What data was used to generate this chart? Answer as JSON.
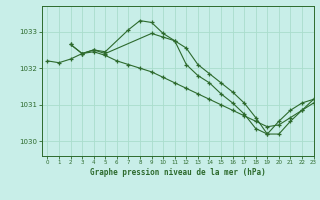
{
  "xlabel": "Graphe pression niveau de la mer (hPa)",
  "xlim": [
    -0.5,
    23
  ],
  "ylim": [
    1029.6,
    1033.7
  ],
  "yticks": [
    1030,
    1031,
    1032,
    1033
  ],
  "xticks": [
    0,
    1,
    2,
    3,
    4,
    5,
    6,
    7,
    8,
    9,
    10,
    11,
    12,
    13,
    14,
    15,
    16,
    17,
    18,
    19,
    20,
    21,
    22,
    23
  ],
  "bg_color": "#c8eee8",
  "line_color": "#2d6a2d",
  "grid_color": "#aaddcc",
  "lines": [
    {
      "x": [
        2,
        3,
        4,
        5,
        7,
        8,
        9,
        10,
        11,
        12,
        13,
        14,
        15,
        16,
        17,
        18,
        19,
        20,
        21,
        22,
        23
      ],
      "y": [
        1032.65,
        1032.4,
        1032.5,
        1032.45,
        1033.05,
        1033.3,
        1033.25,
        1032.95,
        1032.75,
        1032.55,
        1032.1,
        1031.85,
        1031.6,
        1031.35,
        1031.05,
        1030.65,
        1030.2,
        1030.2,
        1030.55,
        1030.85,
        1031.05
      ]
    },
    {
      "x": [
        2,
        3,
        4,
        5,
        9,
        10,
        11,
        12,
        13,
        14,
        15,
        16,
        17,
        18,
        19,
        20,
        21,
        22,
        23
      ],
      "y": [
        1032.65,
        1032.4,
        1032.5,
        1032.4,
        1032.95,
        1032.85,
        1032.75,
        1032.1,
        1031.8,
        1031.6,
        1031.3,
        1031.05,
        1030.75,
        1030.35,
        1030.2,
        1030.55,
        1030.85,
        1031.05,
        1031.15
      ]
    },
    {
      "x": [
        0,
        1,
        2,
        3,
        4,
        5,
        6,
        7,
        8,
        9,
        10,
        11,
        12,
        13,
        14,
        15,
        16,
        17,
        18,
        19,
        20,
        21,
        22,
        23
      ],
      "y": [
        1032.2,
        1032.15,
        1032.25,
        1032.4,
        1032.45,
        1032.35,
        1032.2,
        1032.1,
        1032.0,
        1031.9,
        1031.75,
        1031.6,
        1031.45,
        1031.3,
        1031.15,
        1031.0,
        1030.85,
        1030.7,
        1030.55,
        1030.4,
        1030.45,
        1030.65,
        1030.85,
        1031.15
      ]
    }
  ]
}
